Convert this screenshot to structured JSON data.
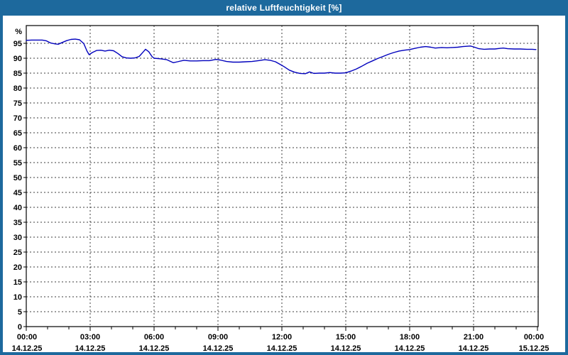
{
  "window": {
    "title": "relative Luftfeuchtigkeit [%]",
    "titlebar_color": "#1d699d",
    "background_color": "#ffffff"
  },
  "chart_data": {
    "type": "line",
    "title": "relative Luftfeuchtigkeit [%]",
    "ylabel": "%",
    "xlabel": "",
    "ylim": [
      0,
      100
    ],
    "xlim_hours": [
      0,
      24
    ],
    "grid": "dashed",
    "legend": "none",
    "line_color": "#0000bd",
    "grid_color": "#3c3c3c",
    "axis_color": "#000000",
    "label_color": "#000000",
    "ytick_unit_label": "%",
    "ytick_values": [
      0,
      5,
      10,
      15,
      20,
      25,
      30,
      35,
      40,
      45,
      50,
      55,
      60,
      65,
      70,
      75,
      80,
      85,
      90,
      95
    ],
    "ytick_labels": [
      "0",
      "5",
      "10",
      "15",
      "20",
      "25",
      "30",
      "35",
      "40",
      "45",
      "50",
      "55",
      "60",
      "65",
      "70",
      "75",
      "80",
      "85",
      "90",
      "95"
    ],
    "xtick_minor_step_hours": 1,
    "xtick_major_step_hours": 3,
    "xtick_major_labels": [
      {
        "hour": 0,
        "time": "00:00",
        "date": "14.12.25"
      },
      {
        "hour": 3,
        "time": "03:00",
        "date": "14.12.25"
      },
      {
        "hour": 6,
        "time": "06:00",
        "date": "14.12.25"
      },
      {
        "hour": 9,
        "time": "09:00",
        "date": "14.12.25"
      },
      {
        "hour": 12,
        "time": "12:00",
        "date": "14.12.25"
      },
      {
        "hour": 15,
        "time": "15:00",
        "date": "14.12.25"
      },
      {
        "hour": 18,
        "time": "18:00",
        "date": "14.12.25"
      },
      {
        "hour": 21,
        "time": "21:00",
        "date": "14.12.25"
      },
      {
        "hour": 24,
        "time": "00:00",
        "date": "15.12.25"
      }
    ],
    "series": [
      {
        "name": "relative Luftfeuchtigkeit",
        "points": [
          [
            0.0,
            96.0
          ],
          [
            0.25,
            96.1
          ],
          [
            0.5,
            96.1
          ],
          [
            0.75,
            96.1
          ],
          [
            0.95,
            95.8
          ],
          [
            1.15,
            95.1
          ],
          [
            1.35,
            94.8
          ],
          [
            1.5,
            94.7
          ],
          [
            1.7,
            95.3
          ],
          [
            1.9,
            95.9
          ],
          [
            2.1,
            96.3
          ],
          [
            2.3,
            96.4
          ],
          [
            2.5,
            96.2
          ],
          [
            2.7,
            94.9
          ],
          [
            2.85,
            92.4
          ],
          [
            2.95,
            91.2
          ],
          [
            3.1,
            91.9
          ],
          [
            3.3,
            92.6
          ],
          [
            3.5,
            92.7
          ],
          [
            3.7,
            92.4
          ],
          [
            3.9,
            92.7
          ],
          [
            4.1,
            92.5
          ],
          [
            4.3,
            91.6
          ],
          [
            4.5,
            90.5
          ],
          [
            4.7,
            90.1
          ],
          [
            4.9,
            90.0
          ],
          [
            5.1,
            90.1
          ],
          [
            5.3,
            90.6
          ],
          [
            5.5,
            92.2
          ],
          [
            5.6,
            93.0
          ],
          [
            5.75,
            92.2
          ],
          [
            5.9,
            90.6
          ],
          [
            6.0,
            90.0
          ],
          [
            6.3,
            89.8
          ],
          [
            6.6,
            89.5
          ],
          [
            6.9,
            88.5
          ],
          [
            7.1,
            88.8
          ],
          [
            7.4,
            89.3
          ],
          [
            7.7,
            89.1
          ],
          [
            8.0,
            89.1
          ],
          [
            8.3,
            89.2
          ],
          [
            8.6,
            89.2
          ],
          [
            8.9,
            89.6
          ],
          [
            9.1,
            89.4
          ],
          [
            9.4,
            88.9
          ],
          [
            9.7,
            88.7
          ],
          [
            10.0,
            88.7
          ],
          [
            10.3,
            88.8
          ],
          [
            10.6,
            88.9
          ],
          [
            10.9,
            89.2
          ],
          [
            11.2,
            89.5
          ],
          [
            11.45,
            89.3
          ],
          [
            11.7,
            88.8
          ],
          [
            11.9,
            88.0
          ],
          [
            12.1,
            87.2
          ],
          [
            12.35,
            86.0
          ],
          [
            12.6,
            85.3
          ],
          [
            12.85,
            84.9
          ],
          [
            13.1,
            84.8
          ],
          [
            13.3,
            85.4
          ],
          [
            13.5,
            84.9
          ],
          [
            13.75,
            85.0
          ],
          [
            14.0,
            85.0
          ],
          [
            14.25,
            85.2
          ],
          [
            14.5,
            85.0
          ],
          [
            14.75,
            85.0
          ],
          [
            15.0,
            85.1
          ],
          [
            15.25,
            85.7
          ],
          [
            15.5,
            86.4
          ],
          [
            15.75,
            87.3
          ],
          [
            16.0,
            88.3
          ],
          [
            16.25,
            89.1
          ],
          [
            16.5,
            89.9
          ],
          [
            16.75,
            90.6
          ],
          [
            17.0,
            91.3
          ],
          [
            17.25,
            91.9
          ],
          [
            17.5,
            92.4
          ],
          [
            17.75,
            92.7
          ],
          [
            18.0,
            92.9
          ],
          [
            18.25,
            93.3
          ],
          [
            18.5,
            93.7
          ],
          [
            18.75,
            93.9
          ],
          [
            19.0,
            93.7
          ],
          [
            19.2,
            93.4
          ],
          [
            19.5,
            93.6
          ],
          [
            19.75,
            93.5
          ],
          [
            20.0,
            93.6
          ],
          [
            20.25,
            93.7
          ],
          [
            20.5,
            93.9
          ],
          [
            20.85,
            94.1
          ],
          [
            21.0,
            93.8
          ],
          [
            21.25,
            93.2
          ],
          [
            21.5,
            93.0
          ],
          [
            21.75,
            93.1
          ],
          [
            22.0,
            93.1
          ],
          [
            22.25,
            93.3
          ],
          [
            22.4,
            93.4
          ],
          [
            22.6,
            93.2
          ],
          [
            22.9,
            93.1
          ],
          [
            23.2,
            93.1
          ],
          [
            23.5,
            93.0
          ],
          [
            23.75,
            93.0
          ],
          [
            23.93,
            92.9
          ]
        ]
      }
    ]
  }
}
